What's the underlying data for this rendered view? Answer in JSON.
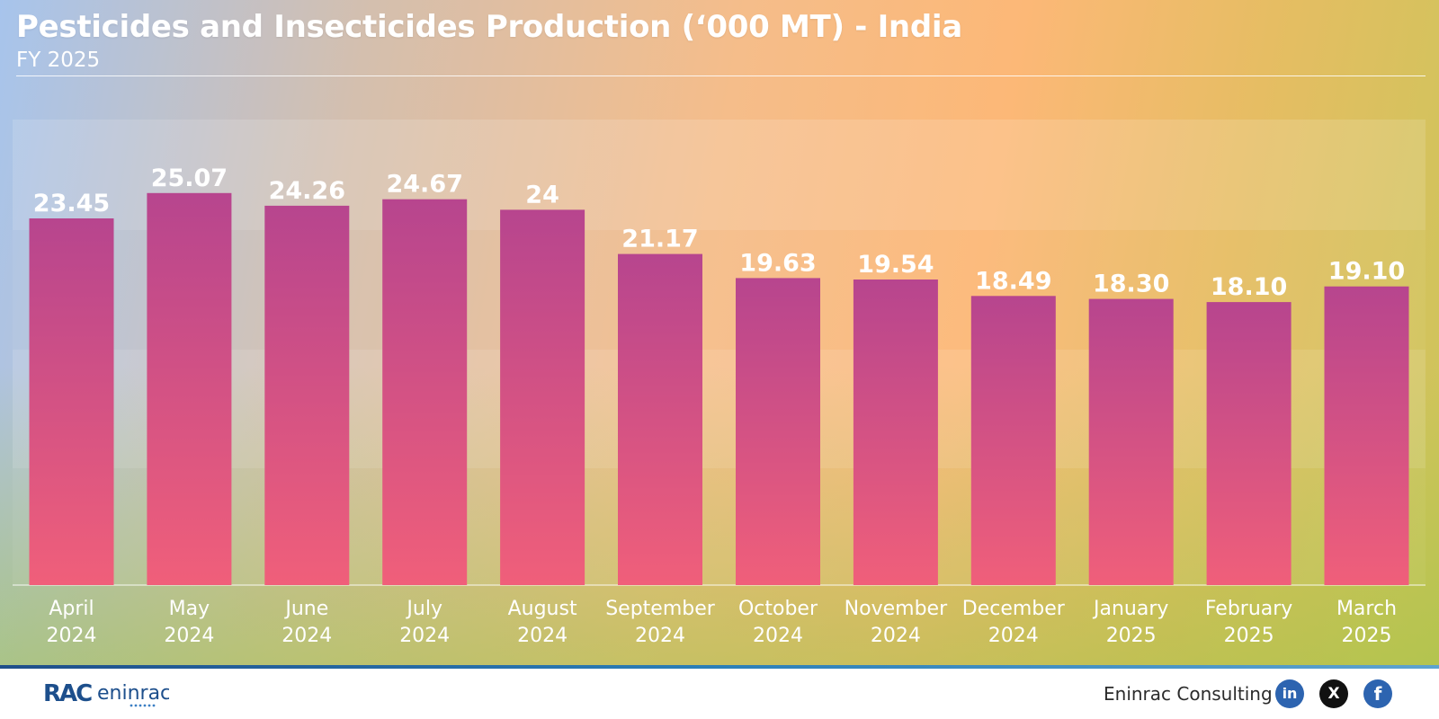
{
  "header": {
    "title": "Pesticides and Insecticides Production (‘000 MT) - India",
    "subtitle": "FY 2025"
  },
  "footer": {
    "brand_name": "Eninrac Consulting",
    "logo_text": "eninrac",
    "logo_mark": "RAC",
    "social": [
      {
        "name": "linkedin-icon",
        "glyph": "in"
      },
      {
        "name": "x-icon",
        "glyph": "X"
      },
      {
        "name": "facebook-icon",
        "glyph": "f"
      }
    ]
  },
  "colors": {
    "bar_top": "#b7458e",
    "bar_bottom": "#f05f7a",
    "text": "#ffffff"
  },
  "chart_data": {
    "type": "bar",
    "title": "Pesticides and Insecticides Production (‘000 MT) - India",
    "subtitle": "FY 2025",
    "categories": [
      [
        "April",
        "2024"
      ],
      [
        "May",
        "2024"
      ],
      [
        "June",
        "2024"
      ],
      [
        "July",
        "2024"
      ],
      [
        "August",
        "2024"
      ],
      [
        "September",
        "2024"
      ],
      [
        "October",
        "2024"
      ],
      [
        "November",
        "2024"
      ],
      [
        "December",
        "2024"
      ],
      [
        "January",
        "2025"
      ],
      [
        "February",
        "2025"
      ],
      [
        "March",
        "2025"
      ]
    ],
    "values": [
      23.45,
      25.07,
      24.26,
      24.67,
      24,
      21.17,
      19.63,
      19.54,
      18.49,
      18.3,
      18.1,
      19.1
    ],
    "value_labels": [
      "23.45",
      "25.07",
      "24.26",
      "24.67",
      "24",
      "21.17",
      "19.63",
      "19.54",
      "18.49",
      "18.30",
      "18.10",
      "19.10"
    ],
    "xlabel": "",
    "ylabel": "",
    "ylim": [
      0,
      30
    ],
    "grid": true,
    "legend": "none"
  }
}
